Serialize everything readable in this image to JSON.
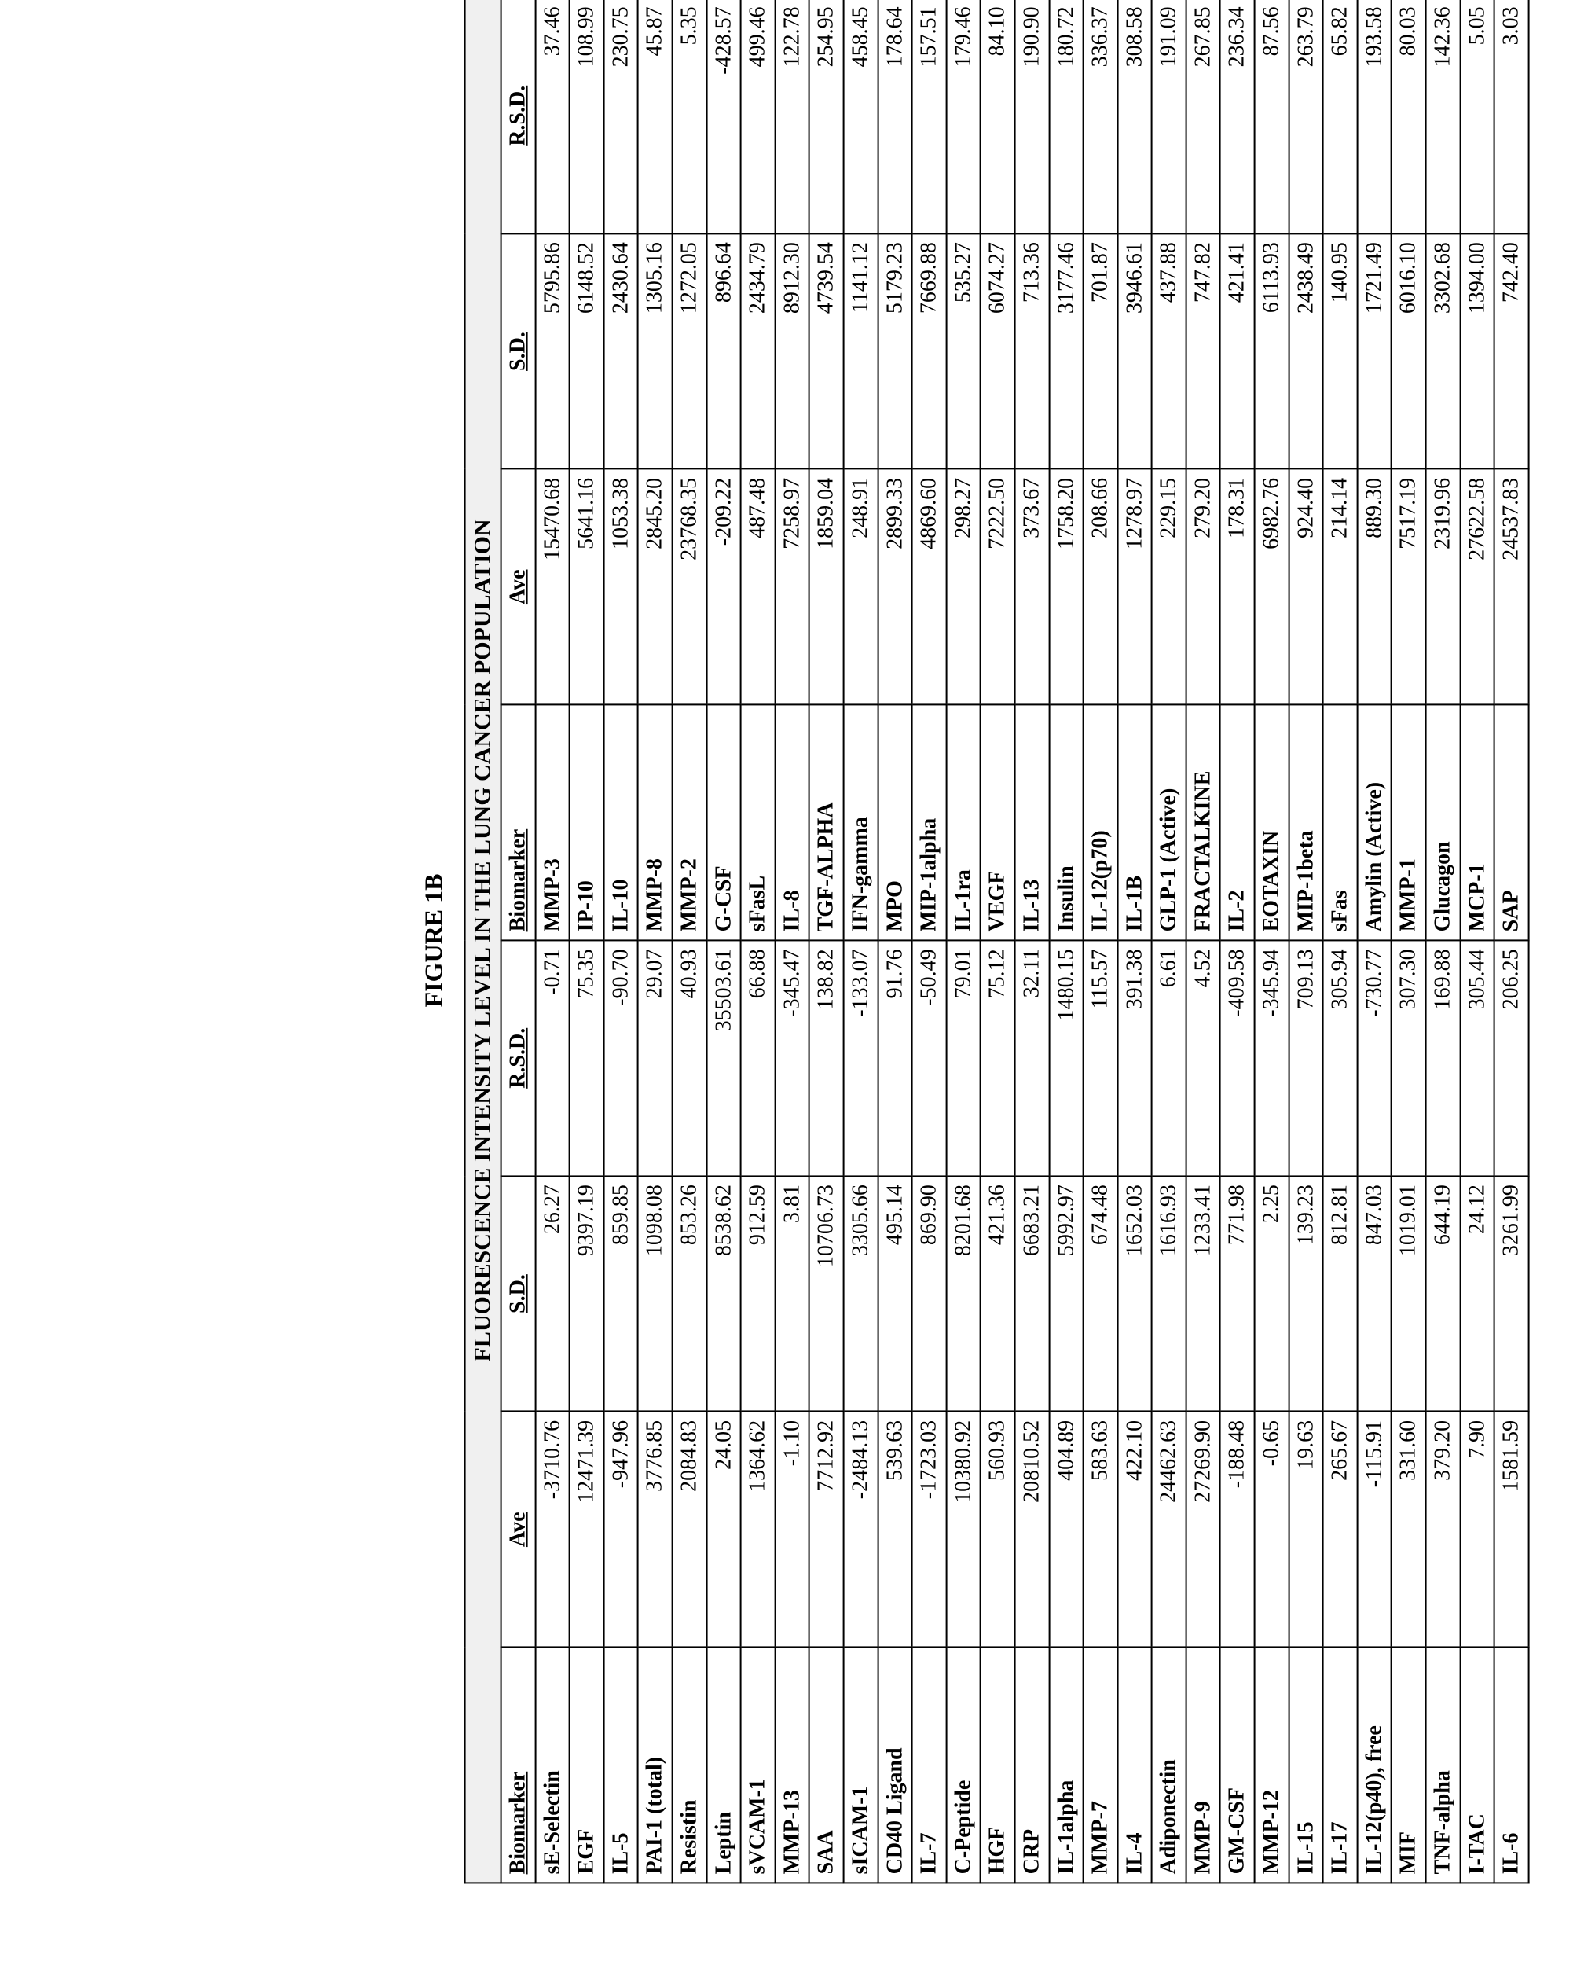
{
  "figure_label": "FIGURE 1B",
  "table_title": "FLUORESCENCE INTENSITY LEVEL IN THE LUNG CANCER POPULATION",
  "headers": {
    "biomarker": "Biomarker",
    "ave": "Ave",
    "sd": "S.D.",
    "rsd": "R.S.D."
  },
  "rows": [
    {
      "b1": "sE-Selectin",
      "a1": "-3710.76",
      "s1": "26.27",
      "r1": "-0.71",
      "b2": "MMP-3",
      "a2": "15470.68",
      "s2": "5795.86",
      "r2": "37.46"
    },
    {
      "b1": "EGF",
      "a1": "12471.39",
      "s1": "9397.19",
      "r1": "75.35",
      "b2": "IP-10",
      "a2": "5641.16",
      "s2": "6148.52",
      "r2": "108.99"
    },
    {
      "b1": "IL-5",
      "a1": "-947.96",
      "s1": "859.85",
      "r1": "-90.70",
      "b2": "IL-10",
      "a2": "1053.38",
      "s2": "2430.64",
      "r2": "230.75"
    },
    {
      "b1": "PAI-1 (total)",
      "a1": "3776.85",
      "s1": "1098.08",
      "r1": "29.07",
      "b2": "MMP-8",
      "a2": "2845.20",
      "s2": "1305.16",
      "r2": "45.87"
    },
    {
      "b1": "Resistin",
      "a1": "2084.83",
      "s1": "853.26",
      "r1": "40.93",
      "b2": "MMP-2",
      "a2": "23768.35",
      "s2": "1272.05",
      "r2": "5.35"
    },
    {
      "b1": "Leptin",
      "a1": "24.05",
      "s1": "8538.62",
      "r1": "35503.61",
      "b2": "G-CSF",
      "a2": "-209.22",
      "s2": "896.64",
      "r2": "-428.57"
    },
    {
      "b1": "sVCAM-1",
      "a1": "1364.62",
      "s1": "912.59",
      "r1": "66.88",
      "b2": "sFasL",
      "a2": "487.48",
      "s2": "2434.79",
      "r2": "499.46"
    },
    {
      "b1": "MMP-13",
      "a1": "-1.10",
      "s1": "3.81",
      "r1": "-345.47",
      "b2": "IL-8",
      "a2": "7258.97",
      "s2": "8912.30",
      "r2": "122.78"
    },
    {
      "b1": "SAA",
      "a1": "7712.92",
      "s1": "10706.73",
      "r1": "138.82",
      "b2": "TGF-ALPHA",
      "a2": "1859.04",
      "s2": "4739.54",
      "r2": "254.95"
    },
    {
      "b1": "sICAM-1",
      "a1": "-2484.13",
      "s1": "3305.66",
      "r1": "-133.07",
      "b2": "IFN-gamma",
      "a2": "248.91",
      "s2": "1141.12",
      "r2": "458.45"
    },
    {
      "b1": "CD40 Ligand",
      "a1": "539.63",
      "s1": "495.14",
      "r1": "91.76",
      "b2": "MPO",
      "a2": "2899.33",
      "s2": "5179.23",
      "r2": "178.64"
    },
    {
      "b1": "IL-7",
      "a1": "-1723.03",
      "s1": "869.90",
      "r1": "-50.49",
      "b2": "MIP-1alpha",
      "a2": "4869.60",
      "s2": "7669.88",
      "r2": "157.51"
    },
    {
      "b1": "C-Peptide",
      "a1": "10380.92",
      "s1": "8201.68",
      "r1": "79.01",
      "b2": "IL-1ra",
      "a2": "298.27",
      "s2": "535.27",
      "r2": "179.46"
    },
    {
      "b1": "HGF",
      "a1": "560.93",
      "s1": "421.36",
      "r1": "75.12",
      "b2": "VEGF",
      "a2": "7222.50",
      "s2": "6074.27",
      "r2": "84.10"
    },
    {
      "b1": "CRP",
      "a1": "20810.52",
      "s1": "6683.21",
      "r1": "32.11",
      "b2": "IL-13",
      "a2": "373.67",
      "s2": "713.36",
      "r2": "190.90"
    },
    {
      "b1": "IL-1alpha",
      "a1": "404.89",
      "s1": "5992.97",
      "r1": "1480.15",
      "b2": "Insulin",
      "a2": "1758.20",
      "s2": "3177.46",
      "r2": "180.72"
    },
    {
      "b1": "MMP-7",
      "a1": "583.63",
      "s1": "674.48",
      "r1": "115.57",
      "b2": "IL-12(p70)",
      "a2": "208.66",
      "s2": "701.87",
      "r2": "336.37"
    },
    {
      "b1": "IL-4",
      "a1": "422.10",
      "s1": "1652.03",
      "r1": "391.38",
      "b2": "IL-1B",
      "a2": "1278.97",
      "s2": "3946.61",
      "r2": "308.58"
    },
    {
      "b1": "Adiponectin",
      "a1": "24462.63",
      "s1": "1616.93",
      "r1": "6.61",
      "b2": "GLP-1 (Active)",
      "a2": "229.15",
      "s2": "437.88",
      "r2": "191.09"
    },
    {
      "b1": "MMP-9",
      "a1": "27269.90",
      "s1": "1233.41",
      "r1": "4.52",
      "b2": "FRACTALKINE",
      "a2": "279.20",
      "s2": "747.82",
      "r2": "267.85"
    },
    {
      "b1": "GM-CSF",
      "a1": "-188.48",
      "s1": "771.98",
      "r1": "-409.58",
      "b2": "IL-2",
      "a2": "178.31",
      "s2": "421.41",
      "r2": "236.34"
    },
    {
      "b1": "MMP-12",
      "a1": "-0.65",
      "s1": "2.25",
      "r1": "-345.94",
      "b2": "EOTAXIN",
      "a2": "6982.76",
      "s2": "6113.93",
      "r2": "87.56"
    },
    {
      "b1": "IL-15",
      "a1": "19.63",
      "s1": "139.23",
      "r1": "709.13",
      "b2": "MIP-1beta",
      "a2": "924.40",
      "s2": "2438.49",
      "r2": "263.79"
    },
    {
      "b1": "IL-17",
      "a1": "265.67",
      "s1": "812.81",
      "r1": "305.94",
      "b2": "sFas",
      "a2": "214.14",
      "s2": "140.95",
      "r2": "65.82"
    },
    {
      "b1": "IL-12(p40), free",
      "a1": "-115.91",
      "s1": "847.03",
      "r1": "-730.77",
      "b2": "Amylin (Active)",
      "a2": "889.30",
      "s2": "1721.49",
      "r2": "193.58"
    },
    {
      "b1": "MIF",
      "a1": "331.60",
      "s1": "1019.01",
      "r1": "307.30",
      "b2": "MMP-1",
      "a2": "7517.19",
      "s2": "6016.10",
      "r2": "80.03"
    },
    {
      "b1": "TNF-alpha",
      "a1": "379.20",
      "s1": "644.19",
      "r1": "169.88",
      "b2": "Glucagon",
      "a2": "2319.96",
      "s2": "3302.68",
      "r2": "142.36"
    },
    {
      "b1": "I-TAC",
      "a1": "7.90",
      "s1": "24.12",
      "r1": "305.44",
      "b2": "MCP-1",
      "a2": "27622.58",
      "s2": "1394.00",
      "r2": "5.05"
    },
    {
      "b1": "IL-6",
      "a1": "1581.59",
      "s1": "3261.99",
      "r1": "206.25",
      "b2": "SAP",
      "a2": "24537.83",
      "s2": "742.40",
      "r2": "3.03"
    }
  ],
  "style": {
    "font_family": "Times New Roman",
    "border_color": "#000000",
    "background_color": "#ffffff",
    "title_bg": "#f0f0f0",
    "font_size_body": 28,
    "font_size_label": 32
  }
}
